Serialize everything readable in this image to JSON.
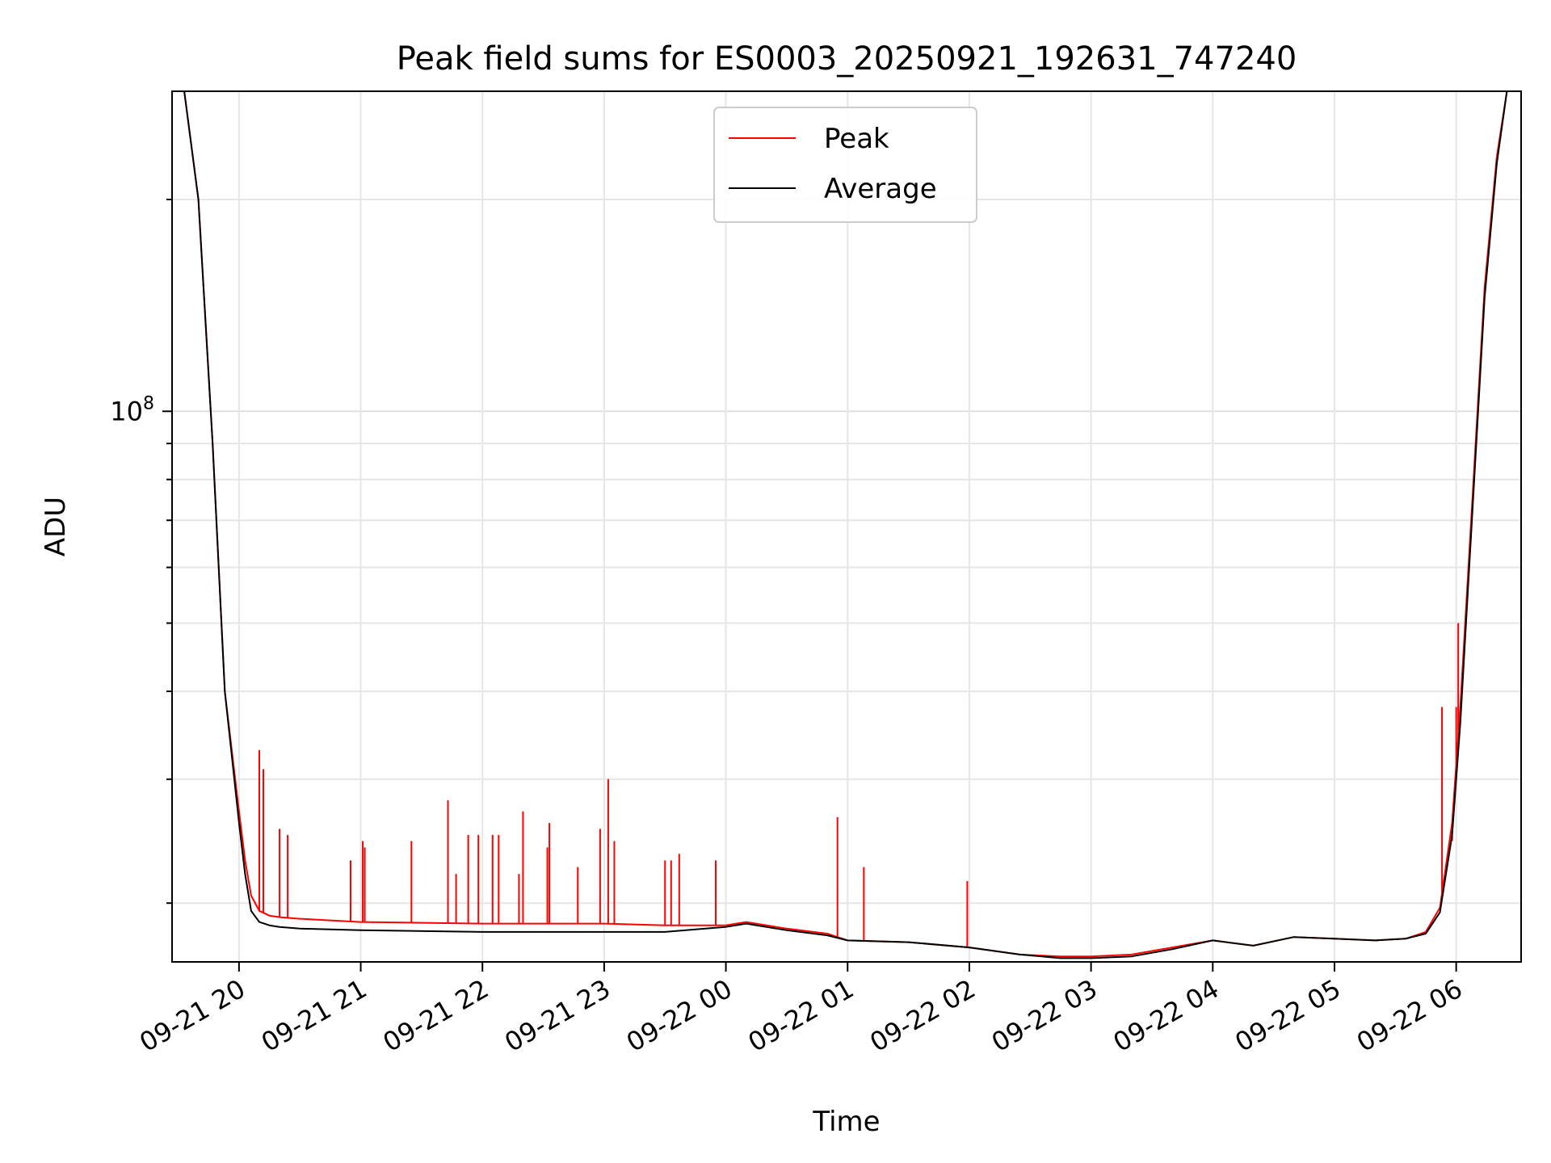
{
  "chart_data": {
    "type": "line",
    "title": "Peak field sums for ES0003_20250921_192631_747240",
    "xlabel": "Time",
    "ylabel": "ADU",
    "y_scale": "log",
    "grid": true,
    "legend_position": "top-center",
    "x_range": [
      "2025-09-21 19:27",
      "2025-09-22 06:32"
    ],
    "y_range": [
      16500000,
      285000000
    ],
    "x_ticks": [
      "09-21 20",
      "09-21 21",
      "09-21 22",
      "09-21 23",
      "09-22 00",
      "09-22 01",
      "09-22 02",
      "09-22 03",
      "09-22 04",
      "09-22 05",
      "09-22 06"
    ],
    "y_ticks": [
      "10^8"
    ],
    "series": [
      {
        "name": "Peak",
        "color": "#ff0000",
        "times": [
          "2025-09-21 19:27",
          "2025-09-21 19:33",
          "2025-09-21 19:40",
          "2025-09-21 19:47",
          "2025-09-21 19:53",
          "2025-09-21 20:00",
          "2025-09-21 20:03",
          "2025-09-21 20:06",
          "2025-09-21 20:10",
          "2025-09-21 20:15",
          "2025-09-21 20:20",
          "2025-09-21 20:30",
          "2025-09-21 21:00",
          "2025-09-21 22:00",
          "2025-09-21 23:00",
          "2025-09-21 23:30",
          "2025-09-22 00:00",
          "2025-09-22 00:10",
          "2025-09-22 00:30",
          "2025-09-22 00:50",
          "2025-09-22 01:00",
          "2025-09-22 01:30",
          "2025-09-22 02:00",
          "2025-09-22 02:25",
          "2025-09-22 02:45",
          "2025-09-22 03:00",
          "2025-09-22 03:20",
          "2025-09-22 03:40",
          "2025-09-22 04:00",
          "2025-09-22 04:20",
          "2025-09-22 04:40",
          "2025-09-22 05:00",
          "2025-09-22 05:20",
          "2025-09-22 05:35",
          "2025-09-22 05:45",
          "2025-09-22 05:52",
          "2025-09-22 05:58",
          "2025-09-22 06:02",
          "2025-09-22 06:08",
          "2025-09-22 06:14",
          "2025-09-22 06:20",
          "2025-09-22 06:25",
          "2025-09-22 06:32"
        ],
        "values": [
          285000000,
          285000000,
          200000000,
          90000000,
          40000000,
          27000000,
          23000000,
          20500000,
          19500000,
          19200000,
          19100000,
          19000000,
          18800000,
          18700000,
          18700000,
          18600000,
          18600000,
          18800000,
          18400000,
          18100000,
          17700000,
          17600000,
          17300000,
          16900000,
          16800000,
          16800000,
          16900000,
          17300000,
          17700000,
          17400000,
          17900000,
          17800000,
          17700000,
          17800000,
          18200000,
          19700000,
          26000000,
          38000000,
          75000000,
          150000000,
          230000000,
          285000000,
          285000000
        ],
        "spikes": [
          {
            "time": "2025-09-21 20:10",
            "value": 33000000
          },
          {
            "time": "2025-09-21 20:12",
            "value": 31000000
          },
          {
            "time": "2025-09-21 20:20",
            "value": 25500000
          },
          {
            "time": "2025-09-21 20:24",
            "value": 25000000
          },
          {
            "time": "2025-09-21 20:55",
            "value": 23000000
          },
          {
            "time": "2025-09-21 21:01",
            "value": 24500000
          },
          {
            "time": "2025-09-21 21:02",
            "value": 24000000
          },
          {
            "time": "2025-09-21 21:25",
            "value": 24500000
          },
          {
            "time": "2025-09-21 21:43",
            "value": 28000000
          },
          {
            "time": "2025-09-21 21:47",
            "value": 22000000
          },
          {
            "time": "2025-09-21 21:53",
            "value": 25000000
          },
          {
            "time": "2025-09-21 21:58",
            "value": 25000000
          },
          {
            "time": "2025-09-21 22:05",
            "value": 25000000
          },
          {
            "time": "2025-09-21 22:08",
            "value": 25000000
          },
          {
            "time": "2025-09-21 22:18",
            "value": 22000000
          },
          {
            "time": "2025-09-21 22:20",
            "value": 27000000
          },
          {
            "time": "2025-09-21 22:32",
            "value": 24000000
          },
          {
            "time": "2025-09-21 22:33",
            "value": 26000000
          },
          {
            "time": "2025-09-21 22:47",
            "value": 22500000
          },
          {
            "time": "2025-09-21 22:58",
            "value": 25500000
          },
          {
            "time": "2025-09-21 23:02",
            "value": 30000000
          },
          {
            "time": "2025-09-21 23:05",
            "value": 24500000
          },
          {
            "time": "2025-09-21 23:30",
            "value": 23000000
          },
          {
            "time": "2025-09-21 23:33",
            "value": 23000000
          },
          {
            "time": "2025-09-21 23:37",
            "value": 23500000
          },
          {
            "time": "2025-09-21 23:55",
            "value": 23000000
          },
          {
            "time": "2025-09-22 00:55",
            "value": 26500000
          },
          {
            "time": "2025-09-22 01:08",
            "value": 22500000
          },
          {
            "time": "2025-09-22 01:59",
            "value": 21500000
          },
          {
            "time": "2025-09-22 05:53",
            "value": 38000000
          },
          {
            "time": "2025-09-22 05:58",
            "value": 24500000
          },
          {
            "time": "2025-09-22 06:00",
            "value": 38000000
          },
          {
            "time": "2025-09-22 06:01",
            "value": 50000000
          }
        ]
      },
      {
        "name": "Average",
        "color": "#000000",
        "times": [
          "2025-09-21 19:27",
          "2025-09-21 19:33",
          "2025-09-21 19:40",
          "2025-09-21 19:47",
          "2025-09-21 19:53",
          "2025-09-21 20:00",
          "2025-09-21 20:03",
          "2025-09-21 20:06",
          "2025-09-21 20:10",
          "2025-09-21 20:15",
          "2025-09-21 20:20",
          "2025-09-21 20:30",
          "2025-09-21 21:00",
          "2025-09-21 22:00",
          "2025-09-21 23:00",
          "2025-09-21 23:30",
          "2025-09-22 00:00",
          "2025-09-22 00:10",
          "2025-09-22 00:30",
          "2025-09-22 00:50",
          "2025-09-22 01:00",
          "2025-09-22 01:30",
          "2025-09-22 02:00",
          "2025-09-22 02:25",
          "2025-09-22 02:45",
          "2025-09-22 03:00",
          "2025-09-22 03:20",
          "2025-09-22 03:40",
          "2025-09-22 04:00",
          "2025-09-22 04:20",
          "2025-09-22 04:40",
          "2025-09-22 05:00",
          "2025-09-22 05:20",
          "2025-09-22 05:35",
          "2025-09-22 05:45",
          "2025-09-22 05:52",
          "2025-09-22 05:58",
          "2025-09-22 06:02",
          "2025-09-22 06:08",
          "2025-09-22 06:14",
          "2025-09-22 06:20",
          "2025-09-22 06:25",
          "2025-09-22 06:32"
        ],
        "values": [
          285000000,
          285000000,
          200000000,
          90000000,
          40000000,
          26000000,
          22000000,
          19500000,
          18800000,
          18600000,
          18500000,
          18400000,
          18300000,
          18200000,
          18200000,
          18200000,
          18500000,
          18700000,
          18300000,
          18000000,
          17700000,
          17600000,
          17300000,
          16900000,
          16700000,
          16700000,
          16800000,
          17200000,
          17700000,
          17400000,
          17900000,
          17800000,
          17700000,
          17800000,
          18100000,
          19400000,
          25000000,
          36000000,
          72000000,
          145000000,
          225000000,
          285000000,
          285000000
        ]
      }
    ]
  }
}
